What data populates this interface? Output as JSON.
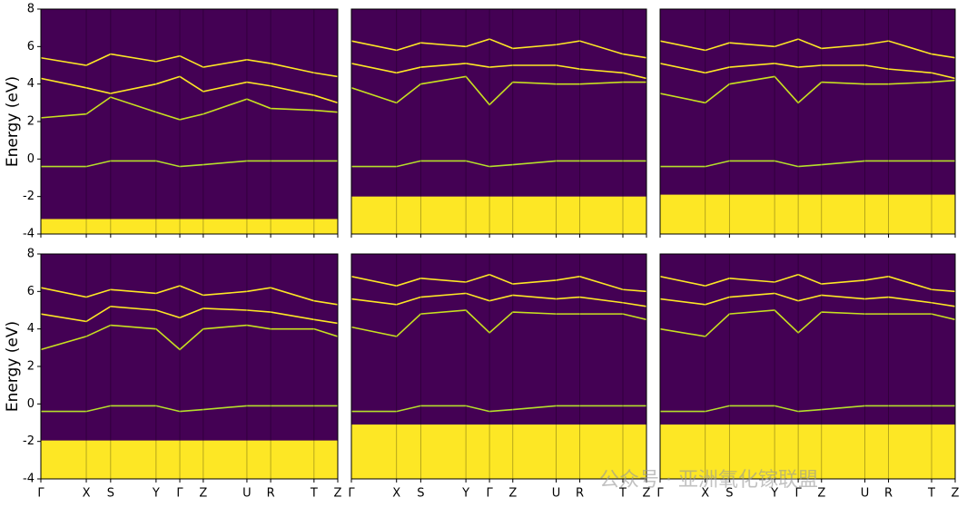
{
  "chart_data": [
    {
      "type": "band",
      "ylabel": "Energy (eV)",
      "ylim": [
        -4,
        8
      ],
      "yticks": [
        -4,
        -2,
        0,
        2,
        4,
        6,
        8
      ],
      "xlim": [
        0,
        1
      ],
      "xticks": [
        0,
        0.153,
        0.235,
        0.388,
        0.468,
        0.547,
        0.694,
        0.774,
        0.92,
        1
      ],
      "x": [
        0,
        0.153,
        0.235,
        0.388,
        0.468,
        0.547,
        0.694,
        0.774,
        0.92,
        1
      ],
      "background": "#440154",
      "valence_color": "#fde725",
      "valence_edge": -3.2,
      "series": [
        {
          "color": "#b5de2b",
          "values": [
            -0.4,
            -0.4,
            -0.1,
            -0.1,
            -0.4,
            -0.3,
            -0.1,
            -0.1,
            -0.1,
            -0.1
          ]
        },
        {
          "color": "#c8e020",
          "values": [
            2.2,
            2.4,
            3.3,
            2.5,
            2.1,
            2.4,
            3.2,
            2.7,
            2.6,
            2.5
          ]
        },
        {
          "color": "#fde725",
          "values": [
            4.3,
            3.8,
            3.5,
            4.0,
            4.4,
            3.6,
            4.1,
            3.9,
            3.4,
            3.0
          ]
        },
        {
          "color": "#fde725",
          "values": [
            5.4,
            5.0,
            5.6,
            5.2,
            5.5,
            4.9,
            5.3,
            5.1,
            4.6,
            4.4
          ]
        }
      ]
    },
    {
      "type": "band",
      "ylim": [
        -4,
        8
      ],
      "xlim": [
        0,
        1
      ],
      "xticks": [
        0,
        0.153,
        0.235,
        0.388,
        0.468,
        0.547,
        0.694,
        0.774,
        0.92,
        1
      ],
      "x": [
        0,
        0.153,
        0.235,
        0.388,
        0.468,
        0.547,
        0.694,
        0.774,
        0.92,
        1
      ],
      "background": "#440154",
      "valence_color": "#fde725",
      "valence_edge": -2.0,
      "series": [
        {
          "color": "#b5de2b",
          "values": [
            -0.4,
            -0.4,
            -0.1,
            -0.1,
            -0.4,
            -0.3,
            -0.1,
            -0.1,
            -0.1,
            -0.1
          ]
        },
        {
          "color": "#c8e020",
          "values": [
            3.8,
            3.0,
            4.0,
            4.4,
            2.9,
            4.1,
            4.0,
            4.0,
            4.1,
            4.1
          ]
        },
        {
          "color": "#fde725",
          "values": [
            5.1,
            4.6,
            4.9,
            5.1,
            4.9,
            5.0,
            5.0,
            4.8,
            4.6,
            4.3
          ]
        },
        {
          "color": "#fde725",
          "values": [
            6.3,
            5.8,
            6.2,
            6.0,
            6.4,
            5.9,
            6.1,
            6.3,
            5.6,
            5.4
          ]
        }
      ]
    },
    {
      "type": "band",
      "ylim": [
        -4,
        8
      ],
      "xlim": [
        0,
        1
      ],
      "xticks": [
        0,
        0.153,
        0.235,
        0.388,
        0.468,
        0.547,
        0.694,
        0.774,
        0.92,
        1
      ],
      "x": [
        0,
        0.153,
        0.235,
        0.388,
        0.468,
        0.547,
        0.694,
        0.774,
        0.92,
        1
      ],
      "background": "#440154",
      "valence_color": "#fde725",
      "valence_edge": -1.9,
      "series": [
        {
          "color": "#b5de2b",
          "values": [
            -0.4,
            -0.4,
            -0.1,
            -0.1,
            -0.4,
            -0.3,
            -0.1,
            -0.1,
            -0.1,
            -0.1
          ]
        },
        {
          "color": "#c8e020",
          "values": [
            3.5,
            3.0,
            4.0,
            4.4,
            3.0,
            4.1,
            4.0,
            4.0,
            4.1,
            4.2
          ]
        },
        {
          "color": "#fde725",
          "values": [
            5.1,
            4.6,
            4.9,
            5.1,
            4.9,
            5.0,
            5.0,
            4.8,
            4.6,
            4.3
          ]
        },
        {
          "color": "#fde725",
          "values": [
            6.3,
            5.8,
            6.2,
            6.0,
            6.4,
            5.9,
            6.1,
            6.3,
            5.6,
            5.4
          ]
        }
      ]
    },
    {
      "type": "band",
      "ylabel": "Energy (eV)",
      "ylim": [
        -4,
        8
      ],
      "yticks": [
        -4,
        -2,
        0,
        2,
        4,
        6,
        8
      ],
      "xlim": [
        0,
        1
      ],
      "xticks": [
        {
          "value": 0,
          "label": "Γ"
        },
        {
          "value": 0.153,
          "label": "X"
        },
        {
          "value": 0.235,
          "label": "S"
        },
        {
          "value": 0.388,
          "label": "Y"
        },
        {
          "value": 0.468,
          "label": "Γ"
        },
        {
          "value": 0.547,
          "label": "Z"
        },
        {
          "value": 0.694,
          "label": "U"
        },
        {
          "value": 0.774,
          "label": "R"
        },
        {
          "value": 0.92,
          "label": "T"
        },
        {
          "value": 1,
          "label": "Z"
        }
      ],
      "x": [
        0,
        0.153,
        0.235,
        0.388,
        0.468,
        0.547,
        0.694,
        0.774,
        0.92,
        1
      ],
      "background": "#440154",
      "valence_color": "#fde725",
      "valence_edge": -1.95,
      "series": [
        {
          "color": "#b5de2b",
          "values": [
            -0.4,
            -0.4,
            -0.1,
            -0.1,
            -0.4,
            -0.3,
            -0.1,
            -0.1,
            -0.1,
            -0.1
          ]
        },
        {
          "color": "#c8e020",
          "values": [
            2.9,
            3.6,
            4.2,
            4.0,
            2.9,
            4.0,
            4.2,
            4.0,
            4.0,
            3.6
          ]
        },
        {
          "color": "#fde725",
          "values": [
            4.8,
            4.4,
            5.2,
            5.0,
            4.6,
            5.1,
            5.0,
            4.9,
            4.5,
            4.3
          ]
        },
        {
          "color": "#fde725",
          "values": [
            6.2,
            5.7,
            6.1,
            5.9,
            6.3,
            5.8,
            6.0,
            6.2,
            5.5,
            5.3
          ]
        }
      ]
    },
    {
      "type": "band",
      "ylim": [
        -4,
        8
      ],
      "xlim": [
        0,
        1
      ],
      "xticks": [
        {
          "value": 0,
          "label": "Γ"
        },
        {
          "value": 0.153,
          "label": "X"
        },
        {
          "value": 0.235,
          "label": "S"
        },
        {
          "value": 0.388,
          "label": "Y"
        },
        {
          "value": 0.468,
          "label": "Γ"
        },
        {
          "value": 0.547,
          "label": "Z"
        },
        {
          "value": 0.694,
          "label": "U"
        },
        {
          "value": 0.774,
          "label": "R"
        },
        {
          "value": 0.92,
          "label": "T"
        },
        {
          "value": 1,
          "label": "Z"
        }
      ],
      "x": [
        0,
        0.153,
        0.235,
        0.388,
        0.468,
        0.547,
        0.694,
        0.774,
        0.92,
        1
      ],
      "background": "#440154",
      "valence_color": "#fde725",
      "valence_edge": -1.1,
      "series": [
        {
          "color": "#b5de2b",
          "values": [
            -0.4,
            -0.4,
            -0.1,
            -0.1,
            -0.4,
            -0.3,
            -0.1,
            -0.1,
            -0.1,
            -0.1
          ]
        },
        {
          "color": "#c8e020",
          "values": [
            4.1,
            3.6,
            4.8,
            5.0,
            3.8,
            4.9,
            4.8,
            4.8,
            4.8,
            4.5
          ]
        },
        {
          "color": "#fde725",
          "values": [
            5.6,
            5.3,
            5.7,
            5.9,
            5.5,
            5.8,
            5.6,
            5.7,
            5.4,
            5.2
          ]
        },
        {
          "color": "#fde725",
          "values": [
            6.8,
            6.3,
            6.7,
            6.5,
            6.9,
            6.4,
            6.6,
            6.8,
            6.1,
            6.0
          ]
        }
      ]
    },
    {
      "type": "band",
      "ylim": [
        -4,
        8
      ],
      "xlim": [
        0,
        1
      ],
      "xticks": [
        {
          "value": 0,
          "label": "Γ"
        },
        {
          "value": 0.153,
          "label": "X"
        },
        {
          "value": 0.235,
          "label": "S"
        },
        {
          "value": 0.388,
          "label": "Y"
        },
        {
          "value": 0.468,
          "label": "Γ"
        },
        {
          "value": 0.547,
          "label": "Z"
        },
        {
          "value": 0.694,
          "label": "U"
        },
        {
          "value": 0.774,
          "label": "R"
        },
        {
          "value": 0.92,
          "label": "T"
        },
        {
          "value": 1,
          "label": "Z"
        }
      ],
      "x": [
        0,
        0.153,
        0.235,
        0.388,
        0.468,
        0.547,
        0.694,
        0.774,
        0.92,
        1
      ],
      "background": "#440154",
      "valence_color": "#fde725",
      "valence_edge": -1.1,
      "series": [
        {
          "color": "#b5de2b",
          "values": [
            -0.4,
            -0.4,
            -0.1,
            -0.1,
            -0.4,
            -0.3,
            -0.1,
            -0.1,
            -0.1,
            -0.1
          ]
        },
        {
          "color": "#c8e020",
          "values": [
            4.0,
            3.6,
            4.8,
            5.0,
            3.8,
            4.9,
            4.8,
            4.8,
            4.8,
            4.5
          ]
        },
        {
          "color": "#fde725",
          "values": [
            5.6,
            5.3,
            5.7,
            5.9,
            5.5,
            5.8,
            5.6,
            5.7,
            5.4,
            5.2
          ]
        },
        {
          "color": "#fde725",
          "values": [
            6.8,
            6.3,
            6.7,
            6.5,
            6.9,
            6.4,
            6.6,
            6.8,
            6.1,
            6.0
          ]
        }
      ]
    }
  ],
  "watermark": "公众号 · 亚洲氧化镓联盟"
}
